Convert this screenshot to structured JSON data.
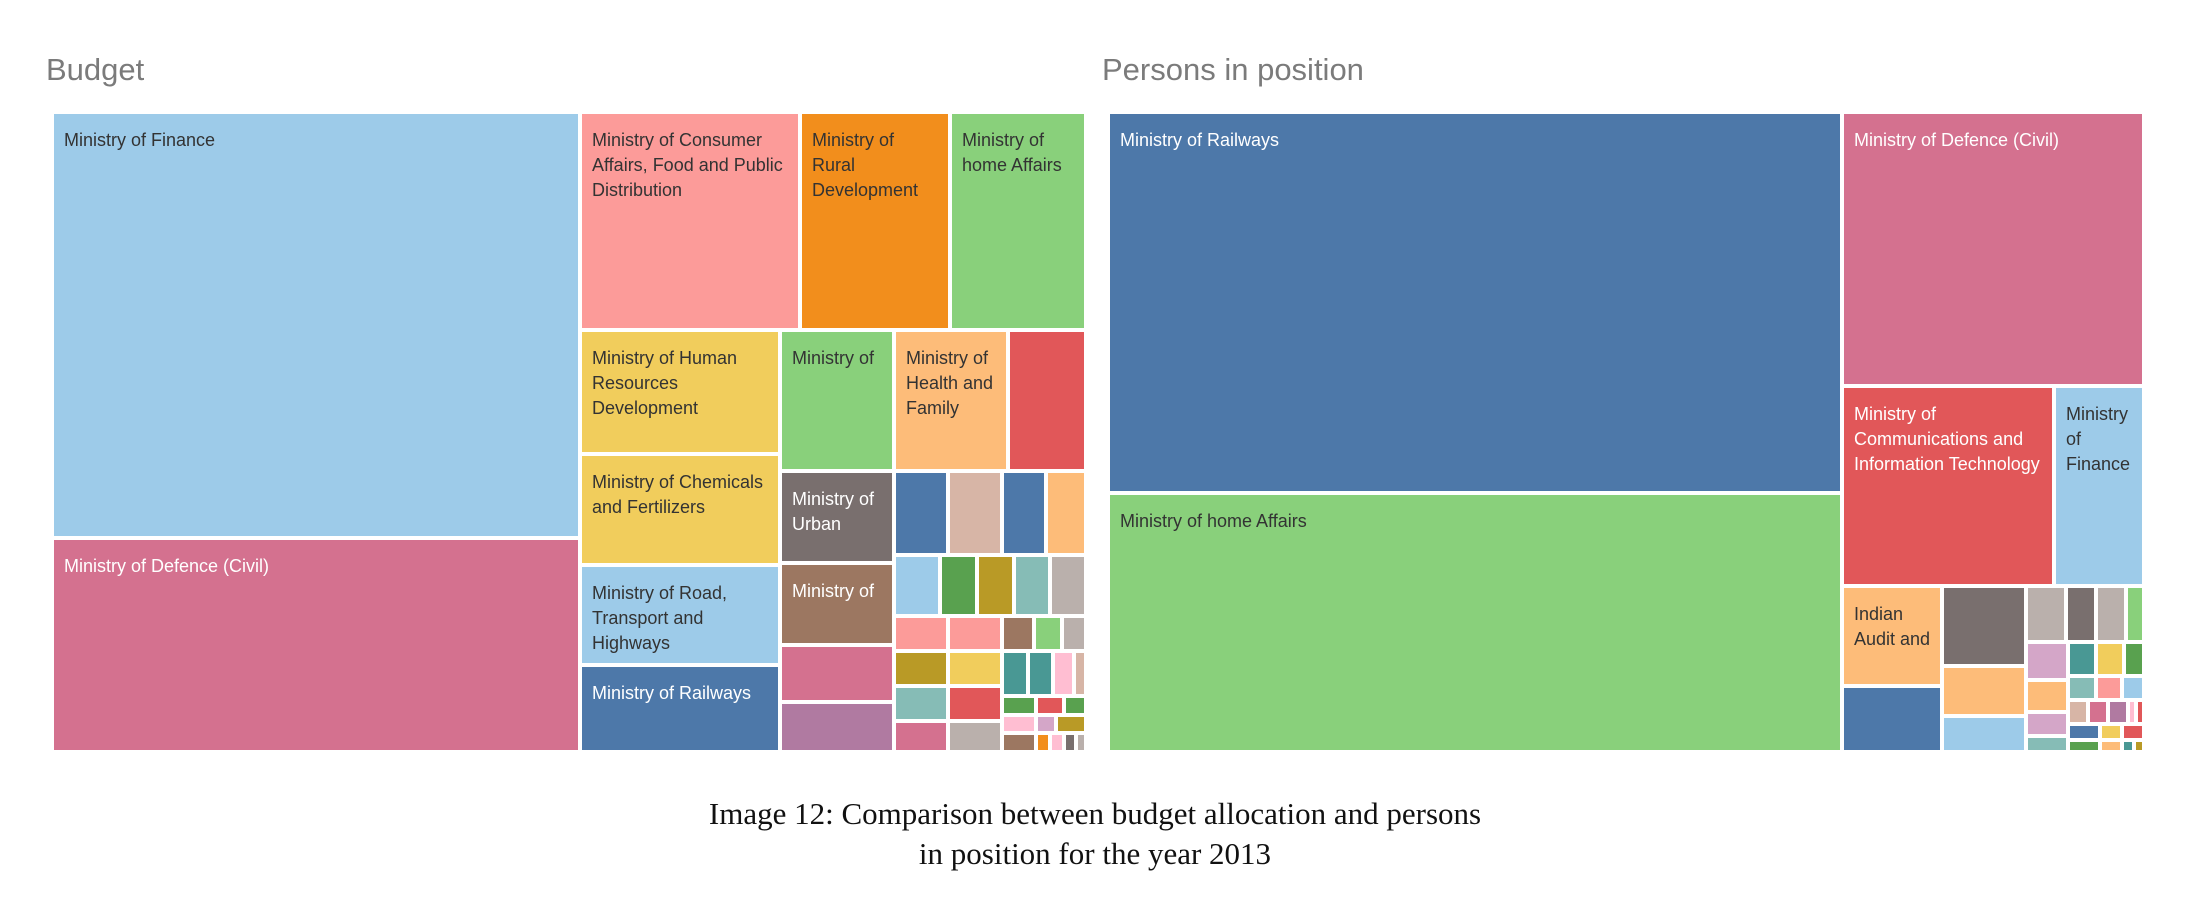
{
  "caption": {
    "line1": "Image 12: Comparison between budget allocation and persons",
    "line2": "in position for the year 2013"
  },
  "chart_data": [
    {
      "type": "treemap",
      "title": "Budget",
      "labels_shown": true,
      "nodes": [
        {
          "name": "Ministry of Finance",
          "label": "Ministry of Finance",
          "color": "#9dcbe9",
          "value": 18.5
        },
        {
          "name": "Ministry of Defence (Civil)",
          "label": "Ministry of Defence (Civil)",
          "color": "#d4718f",
          "value": 7.1
        },
        {
          "name": "Ministry of Consumer Affairs, Food and Public Distribution",
          "label": "Ministry of Consumer Affairs, Food and Public Distribution",
          "color": "#fc9b99",
          "value": 1.68
        },
        {
          "name": "Ministry of Rural Development",
          "label": "Ministry of Rural Development",
          "color": "#f28e1c",
          "value": 1.17
        },
        {
          "name": "Ministry of home Affairs",
          "label": "Ministry of home Affairs",
          "color": "#89d07b",
          "value": 1.03
        },
        {
          "name": "Ministry of Human Resources Development",
          "label": "Ministry of Human Resources Development",
          "color": "#f1cd5c",
          "value": 1.05
        },
        {
          "name": "Ministry of Chemicals and Fertilizers",
          "label": "Ministry of Chemicals and Fertilizers",
          "color": "#f1cd5c",
          "value": 0.85
        },
        {
          "name": "Ministry of Road, Transport and Highways",
          "label": "Ministry of Road, Transport and Highways",
          "color": "#9dcbe9",
          "value": 0.78
        },
        {
          "name": "Ministry of Railways",
          "label": "Ministry of Railways",
          "color": "#4d78a9",
          "value": 0.66
        },
        {
          "name": "Ministry of",
          "label": "Ministry of",
          "color": "#89d07b",
          "value": 0.56
        },
        {
          "name": "Ministry of Health and Family",
          "label": "Ministry of Health and Family",
          "color": "#fdbc79",
          "value": 0.5
        },
        {
          "name": "",
          "label": "",
          "color": "#e15759",
          "value": 0.41
        },
        {
          "name": "Ministry of Urban",
          "label": "Ministry of Urban",
          "color": "#796f6e",
          "value": 0.47
        },
        {
          "name": "Ministry of",
          "label": "Ministry of",
          "color": "#9c7761",
          "value": 0.42
        },
        {
          "name": "",
          "label": "",
          "color": "#d4718f",
          "value": 0.41
        },
        {
          "name": "",
          "label": "",
          "color": "#b07aa1",
          "value": 0.41
        },
        {
          "name": "",
          "label": "",
          "color": "#4d78a9",
          "value": 0.2
        },
        {
          "name": "",
          "label": "",
          "color": "#d7b5a6",
          "value": 0.21
        },
        {
          "name": "",
          "label": "",
          "color": "#4d78a9",
          "value": 0.18
        },
        {
          "name": "",
          "label": "",
          "color": "#fdbc79",
          "value": 0.17
        },
        {
          "name": "",
          "label": "",
          "color": "#9dcbe9",
          "value": 0.13
        },
        {
          "name": "",
          "label": "",
          "color": "#59a14f",
          "value": 0.13
        },
        {
          "name": "",
          "label": "",
          "color": "#b99a26",
          "value": 0.13
        },
        {
          "name": "",
          "label": "",
          "color": "#86bcb6",
          "value": 0.12
        },
        {
          "name": "",
          "label": "",
          "color": "#bab0ac",
          "value": 0.11
        },
        {
          "name": "",
          "label": "",
          "color": "#fc9b99",
          "value": 0.08
        },
        {
          "name": "",
          "label": "",
          "color": "#fc9b99",
          "value": 0.08
        },
        {
          "name": "",
          "label": "",
          "color": "#9c7761",
          "value": 0.05
        },
        {
          "name": "",
          "label": "",
          "color": "#89d07b",
          "value": 0.04
        },
        {
          "name": "",
          "label": "",
          "color": "#bab0ac",
          "value": 0.03
        },
        {
          "name": "",
          "label": "",
          "color": "#b99a26",
          "value": 0.09
        },
        {
          "name": "",
          "label": "",
          "color": "#f1cd5c",
          "value": 0.07
        },
        {
          "name": "",
          "label": "",
          "color": "#86bcb6",
          "value": 0.09
        },
        {
          "name": "",
          "label": "",
          "color": "#e15759",
          "value": 0.06
        },
        {
          "name": "",
          "label": "",
          "color": "#499894",
          "value": 0.06
        },
        {
          "name": "",
          "label": "",
          "color": "#d4718f",
          "value": 0.05
        },
        {
          "name": "",
          "label": "",
          "color": "#bab0ac",
          "value": 0.05
        },
        {
          "name": "",
          "label": "",
          "color": "#499894",
          "value": 0.03
        },
        {
          "name": "",
          "label": "",
          "color": "#ffbed2",
          "value": 0.02
        },
        {
          "name": "",
          "label": "",
          "color": "#d7b5a6",
          "value": 0.02
        },
        {
          "name": "",
          "label": "",
          "color": "#59a14f",
          "value": 0.02
        },
        {
          "name": "",
          "label": "",
          "color": "#e15759",
          "value": 0.02
        },
        {
          "name": "",
          "label": "",
          "color": "#59a14f",
          "value": 0.02
        },
        {
          "name": "",
          "label": "",
          "color": "#ffbed2",
          "value": 0.01
        },
        {
          "name": "",
          "label": "",
          "color": "#d4a6c8",
          "value": 0.01
        },
        {
          "name": "",
          "label": "",
          "color": "#b99a26",
          "value": 0.01
        },
        {
          "name": "",
          "label": "",
          "color": "#9c7761",
          "value": 0.01
        },
        {
          "name": "",
          "label": "",
          "color": "#f28e1c",
          "value": 0.01
        },
        {
          "name": "",
          "label": "",
          "color": "#ffbed2",
          "value": 0.01
        },
        {
          "name": "",
          "label": "",
          "color": "#796f6e",
          "value": 0.01
        },
        {
          "name": "",
          "label": "",
          "color": "#bab0ac",
          "value": 0.01
        }
      ]
    },
    {
      "type": "treemap",
      "title": "Persons in position",
      "labels_shown": true,
      "nodes": [
        {
          "name": "Ministry of Railways",
          "label": "Ministry of Railways",
          "color": "#4d78a9",
          "value": 23.5
        },
        {
          "name": "Ministry of home Affairs",
          "label": "Ministry of home Affairs",
          "color": "#89d07b",
          "value": 16.0
        },
        {
          "name": "Ministry of Defence (Civil)",
          "label": "Ministry of Defence (Civil)",
          "color": "#d4718f",
          "value": 6.8
        },
        {
          "name": "Ministry of Communications and Information Technology",
          "label": "Ministry of Communications and Information Technology",
          "color": "#e15759",
          "value": 3.4
        },
        {
          "name": "Ministry of Finance",
          "label": "Ministry of Finance",
          "color": "#9dcbe9",
          "value": 2.3
        },
        {
          "name": "Indian Audit and",
          "label": "Indian Audit and",
          "color": "#fdbc79",
          "value": 1.2
        },
        {
          "name": "",
          "label": "",
          "color": "#4d78a9",
          "value": 1.07
        },
        {
          "name": "",
          "label": "",
          "color": "#796f6e",
          "value": 1.0
        },
        {
          "name": "",
          "label": "",
          "color": "#fdbc79",
          "value": 0.71
        },
        {
          "name": "",
          "label": "",
          "color": "#9dcbe9",
          "value": 0.53
        },
        {
          "name": "",
          "label": "",
          "color": "#bab0ac",
          "value": 0.26
        },
        {
          "name": "",
          "label": "",
          "color": "#796f6e",
          "value": 0.17
        },
        {
          "name": "",
          "label": "",
          "color": "#bab0ac",
          "value": 0.15
        },
        {
          "name": "",
          "label": "",
          "color": "#89d07b",
          "value": 0.13
        },
        {
          "name": "",
          "label": "",
          "color": "#d4a6c8",
          "value": 0.11
        },
        {
          "name": "",
          "label": "",
          "color": "#499894",
          "value": 0.09
        },
        {
          "name": "",
          "label": "",
          "color": "#f1cd5c",
          "value": 0.08
        },
        {
          "name": "",
          "label": "",
          "color": "#59a14f",
          "value": 0.08
        },
        {
          "name": "",
          "label": "",
          "color": "#fdbc79",
          "value": 0.09
        },
        {
          "name": "",
          "label": "",
          "color": "#86bcb6",
          "value": 0.05
        },
        {
          "name": "",
          "label": "",
          "color": "#fc9b99",
          "value": 0.04
        },
        {
          "name": "",
          "label": "",
          "color": "#9dcbe9",
          "value": 0.03
        },
        {
          "name": "",
          "label": "",
          "color": "#d4a6c8",
          "value": 0.07
        },
        {
          "name": "",
          "label": "",
          "color": "#d7b5a6",
          "value": 0.05
        },
        {
          "name": "",
          "label": "",
          "color": "#d4718f",
          "value": 0.04
        },
        {
          "name": "",
          "label": "",
          "color": "#b07aa1",
          "value": 0.03
        },
        {
          "name": "",
          "label": "",
          "color": "#86bcb6",
          "value": 0.07
        },
        {
          "name": "",
          "label": "",
          "color": "#4d78a9",
          "value": 0.04
        },
        {
          "name": "",
          "label": "",
          "color": "#f1cd5c",
          "value": 0.02
        },
        {
          "name": "",
          "label": "",
          "color": "#e15759",
          "value": 0.02
        },
        {
          "name": "",
          "label": "",
          "color": "#59a14f",
          "value": 0.03
        },
        {
          "name": "",
          "label": "",
          "color": "#fdbc79",
          "value": 0.02
        },
        {
          "name": "",
          "label": "",
          "color": "#499894",
          "value": 0.01
        },
        {
          "name": "",
          "label": "",
          "color": "#b99a26",
          "value": 0.01
        },
        {
          "name": "",
          "label": "",
          "color": "#ffbed2",
          "value": 0.01
        },
        {
          "name": "",
          "label": "",
          "color": "#e15759",
          "value": 0.01
        }
      ]
    }
  ]
}
